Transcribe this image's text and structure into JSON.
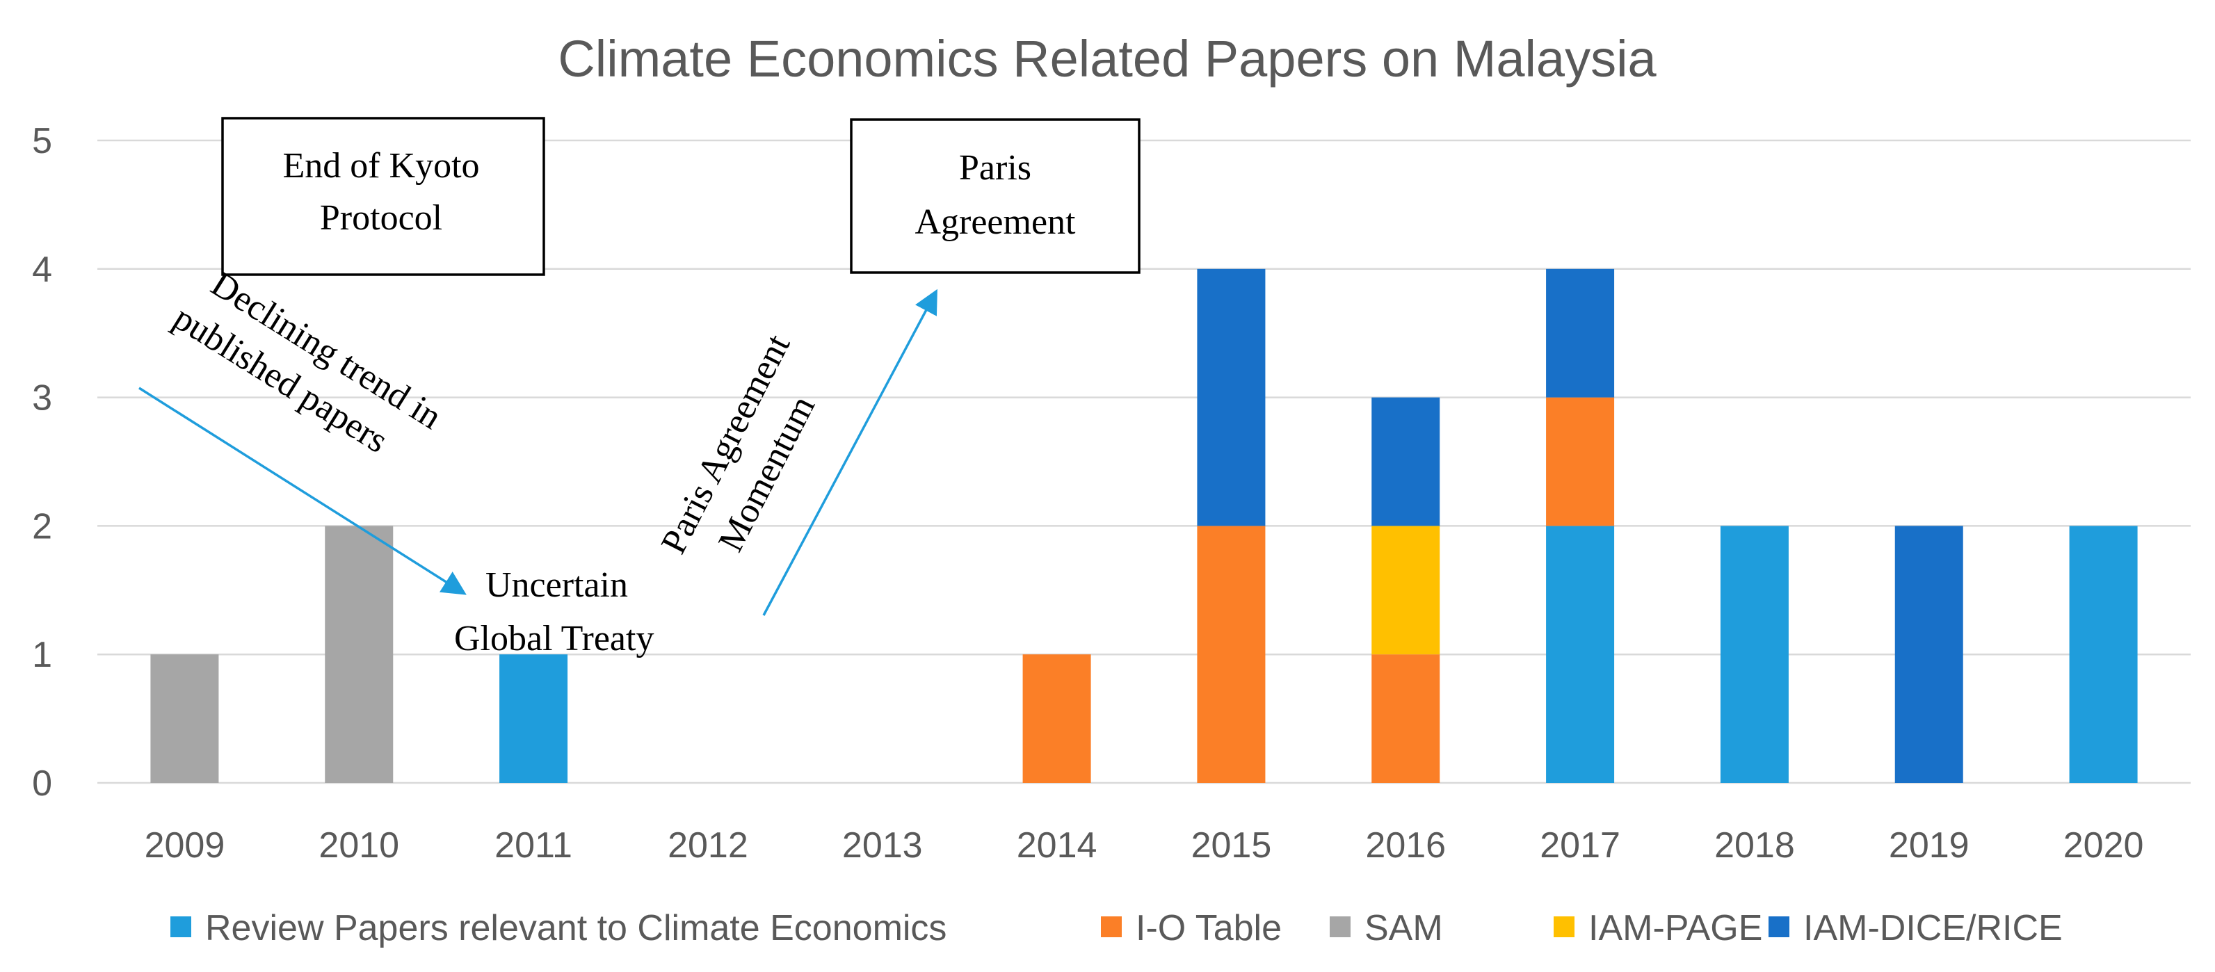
{
  "chart_data": {
    "type": "bar",
    "stacked": true,
    "title": "Climate Economics Related Papers on Malaysia",
    "xlabel": "",
    "ylabel": "",
    "ylim": [
      0,
      5
    ],
    "yticks": [
      0,
      1,
      2,
      3,
      4,
      5
    ],
    "grid": true,
    "legend_position": "bottom",
    "categories": [
      "2009",
      "2010",
      "2011",
      "2012",
      "2013",
      "2014",
      "2015",
      "2016",
      "2017",
      "2018",
      "2019",
      "2020"
    ],
    "series": [
      {
        "name": "Review Papers relevant to Climate Economics",
        "color": "#1f9ddc",
        "values": [
          0,
          0,
          1,
          0,
          0,
          0,
          0,
          0,
          2,
          2,
          0,
          2
        ]
      },
      {
        "name": "I-O Table",
        "color": "#fb7f27",
        "values": [
          0,
          0,
          0,
          0,
          0,
          1,
          2,
          1,
          1,
          0,
          0,
          0
        ]
      },
      {
        "name": "SAM",
        "color": "#a6a6a6",
        "values": [
          1,
          2,
          0,
          0,
          0,
          0,
          0,
          0,
          0,
          0,
          0,
          0
        ]
      },
      {
        "name": "IAM-PAGE",
        "color": "#ffc000",
        "values": [
          0,
          0,
          0,
          0,
          0,
          0,
          0,
          1,
          0,
          0,
          0,
          0
        ]
      },
      {
        "name": "IAM-DICE/RICE",
        "color": "#1870c8",
        "values": [
          0,
          0,
          0,
          0,
          0,
          0,
          2,
          1,
          1,
          0,
          2,
          0
        ]
      }
    ],
    "annotations": {
      "kyoto_box": [
        "End of Kyoto",
        "Protocol"
      ],
      "paris_box": [
        "Paris",
        "Agreement"
      ],
      "declining": [
        "Declining trend in",
        "published papers"
      ],
      "uncertain": [
        "Uncertain",
        "Global Treaty"
      ],
      "momentum": [
        "Paris Agreement",
        "Momentum"
      ],
      "arrow_color": "#1f9ddc"
    }
  }
}
